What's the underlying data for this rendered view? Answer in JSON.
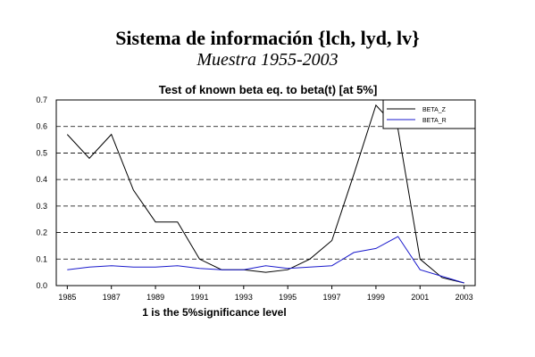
{
  "header": {
    "title": "Sistema de información {lch, lyd, lv}",
    "subtitle": "Muestra 1955-2003"
  },
  "chart_data": {
    "type": "line",
    "title": "Test of known beta eq. to beta(t) [at 5%]",
    "xlabel": "1 is the 5%significance level",
    "ylabel": "",
    "x": [
      1985,
      1986,
      1987,
      1988,
      1989,
      1990,
      1991,
      1992,
      1993,
      1994,
      1995,
      1996,
      1997,
      1998,
      1999,
      2000,
      2001,
      2002,
      2003
    ],
    "xticks": [
      "1985",
      "1987",
      "1989",
      "1991",
      "1993",
      "1995",
      "1997",
      "1999",
      "2001",
      "2003"
    ],
    "xlim": [
      1984.5,
      2003.5
    ],
    "yticks": [
      "0.0",
      "0.1",
      "0.2",
      "0.3",
      "0.4",
      "0.5",
      "0.6",
      "0.7"
    ],
    "ylim": [
      0,
      0.7
    ],
    "grid": "horizontal dashed",
    "legend": "top-right",
    "series": [
      {
        "name": "BETA_Z",
        "color": "#000000",
        "values": [
          0.57,
          0.48,
          0.57,
          0.36,
          0.24,
          0.24,
          0.1,
          0.06,
          0.06,
          0.05,
          0.06,
          0.1,
          0.17,
          0.42,
          0.68,
          0.59,
          0.1,
          0.03,
          0.01
        ]
      },
      {
        "name": "BETA_R",
        "color": "#1a1acc",
        "values": [
          0.06,
          0.07,
          0.075,
          0.07,
          0.07,
          0.075,
          0.065,
          0.06,
          0.06,
          0.075,
          0.065,
          0.07,
          0.075,
          0.125,
          0.14,
          0.185,
          0.06,
          0.035,
          0.01
        ]
      }
    ]
  }
}
